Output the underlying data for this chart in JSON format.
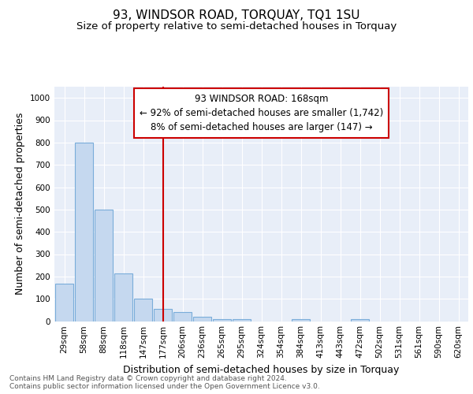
{
  "title": "93, WINDSOR ROAD, TORQUAY, TQ1 1SU",
  "subtitle": "Size of property relative to semi-detached houses in Torquay",
  "xlabel": "Distribution of semi-detached houses by size in Torquay",
  "ylabel": "Number of semi-detached properties",
  "categories": [
    "29sqm",
    "58sqm",
    "88sqm",
    "118sqm",
    "147sqm",
    "177sqm",
    "206sqm",
    "236sqm",
    "265sqm",
    "295sqm",
    "324sqm",
    "354sqm",
    "384sqm",
    "413sqm",
    "443sqm",
    "472sqm",
    "502sqm",
    "531sqm",
    "561sqm",
    "590sqm",
    "620sqm"
  ],
  "values": [
    168,
    800,
    500,
    215,
    100,
    53,
    40,
    20,
    10,
    8,
    0,
    0,
    10,
    0,
    0,
    8,
    0,
    0,
    0,
    0,
    0
  ],
  "bar_color": "#c5d8ef",
  "bar_edge_color": "#7aadda",
  "property_line_x": 5.0,
  "property_line_color": "#cc0000",
  "annotation_text": "93 WINDSOR ROAD: 168sqm\n← 92% of semi-detached houses are smaller (1,742)\n8% of semi-detached houses are larger (147) →",
  "annotation_box_color": "#ffffff",
  "annotation_box_edge": "#cc0000",
  "ylim": [
    0,
    1050
  ],
  "yticks": [
    0,
    100,
    200,
    300,
    400,
    500,
    600,
    700,
    800,
    900,
    1000
  ],
  "footer_text": "Contains HM Land Registry data © Crown copyright and database right 2024.\nContains public sector information licensed under the Open Government Licence v3.0.",
  "background_color": "#e8eef8",
  "grid_color": "#ffffff",
  "title_fontsize": 11,
  "subtitle_fontsize": 9.5,
  "axis_label_fontsize": 9,
  "tick_fontsize": 7.5,
  "annotation_fontsize": 8.5,
  "footer_fontsize": 6.5
}
